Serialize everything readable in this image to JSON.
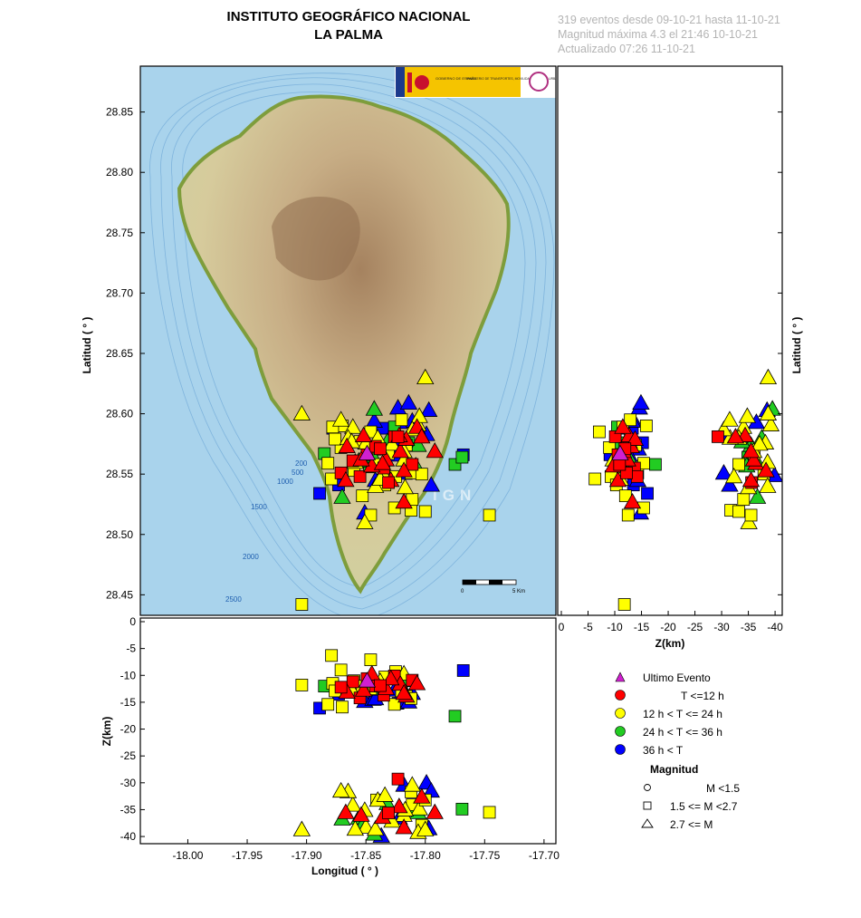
{
  "header": {
    "title_line1": "INSTITUTO GEOGRÁFICO NACIONAL",
    "title_line2": "LA PALMA",
    "info_line1": "319 eventos desde 09-10-21 hasta 11-10-21",
    "info_line2": "Magnitud máxima 4.3 el 21:46 10-10-21",
    "info_line3": "Actualizado   07:26  11-10-21"
  },
  "map": {
    "watermark": "IGN",
    "scale_bar": {
      "start": "0",
      "end": "5 Km"
    },
    "bathymetry_labels": [
      "200",
      "500",
      "1000",
      "1500",
      "2000",
      "2500"
    ],
    "logo_text": [
      "GOBIERNO DE ESPAÑA",
      "MINISTERIO DE TRANSPORTES, MOVILIDAD Y AGENDA URBANA"
    ]
  },
  "axes": {
    "latitude_label": "Latitud ( ° )",
    "longitude_label": "Longitud ( ° )",
    "depth_label": "Z(km)",
    "lat_ticks": [
      "28.85",
      "28.80",
      "28.75",
      "28.70",
      "28.65",
      "28.60",
      "28.55",
      "28.50",
      "28.45"
    ],
    "lon_ticks": [
      "-18.00",
      "-17.95",
      "-17.90",
      "-17.85",
      "-17.80",
      "-17.75",
      "-17.70"
    ],
    "depth_ticks_vertical": [
      "0",
      "-5",
      "-10",
      "-15",
      "-20",
      "-25",
      "-30",
      "-35",
      "-40"
    ],
    "depth_ticks_horizontal": [
      "0",
      "-5",
      "-10",
      "-15",
      "-20",
      "-25",
      "-30",
      "-35",
      "-40"
    ]
  },
  "legend": {
    "ultimo": "Ultimo Evento",
    "t1": "T <=12 h",
    "t2": "12 h  < T <= 24 h",
    "t3": "24 h  < T <= 36 h",
    "t4": "36 h <  T",
    "mag_title": "Magnitud",
    "m1": "M <1.5",
    "m2": "1.5 <= M <2.7",
    "m3": "2.7 <= M"
  },
  "colors": {
    "ultimo": "#d020d0",
    "red": "#ff0000",
    "yellow": "#ffff00",
    "green": "#22cc22",
    "blue": "#0000ff",
    "sea": "#a8d2ec",
    "land": "#d8cca0",
    "relief": "#9a7a55",
    "coast": "#8ba046"
  },
  "chart_data": {
    "type": "scatter",
    "xlim": [
      -18.04,
      -17.69
    ],
    "ylim": [
      28.433,
      28.888
    ],
    "zlim": [
      0,
      -41
    ],
    "events": [
      [
        -17.849,
        28.566,
        -10.6,
        1,
        2
      ],
      [
        -17.842,
        28.573,
        -12.0,
        1,
        2
      ],
      [
        -17.835,
        28.555,
        -13.7,
        1,
        2
      ],
      [
        -17.861,
        28.561,
        -11.2,
        1,
        2
      ],
      [
        -17.826,
        28.581,
        -10.1,
        1,
        2
      ],
      [
        -17.855,
        28.548,
        -14.2,
        1,
        2
      ],
      [
        -17.833,
        28.562,
        -12.4,
        1,
        3
      ],
      [
        -17.845,
        28.557,
        -9.7,
        1,
        3
      ],
      [
        -17.821,
        28.569,
        -11.6,
        1,
        3
      ],
      [
        -17.866,
        28.573,
        -13.1,
        1,
        3
      ],
      [
        -17.829,
        28.545,
        -10.6,
        1,
        3
      ],
      [
        -17.852,
        28.582,
        -12.7,
        1,
        3
      ],
      [
        -17.816,
        28.579,
        -13.8,
        1,
        3
      ],
      [
        -17.838,
        28.571,
        -11.9,
        1,
        2
      ],
      [
        -17.871,
        28.551,
        -12.2,
        1,
        2
      ],
      [
        -17.811,
        28.558,
        -10.9,
        1,
        2
      ],
      [
        -17.818,
        28.527,
        -13.3,
        1,
        3
      ],
      [
        -17.807,
        28.589,
        -11.5,
        1,
        3
      ],
      [
        -17.836,
        28.559,
        -36.4,
        1,
        3
      ],
      [
        -17.822,
        28.582,
        -34.4,
        1,
        3
      ],
      [
        -17.854,
        28.562,
        -36.0,
        1,
        3
      ],
      [
        -17.818,
        28.553,
        -38.3,
        1,
        3
      ],
      [
        -17.803,
        28.581,
        -32.6,
        1,
        3
      ],
      [
        -17.792,
        28.569,
        -35.5,
        1,
        3
      ],
      [
        -17.823,
        28.581,
        -29.3,
        1,
        2
      ],
      [
        -17.831,
        28.543,
        -35.6,
        1,
        2
      ],
      [
        -17.867,
        28.545,
        -35.5,
        1,
        3
      ],
      [
        -17.87,
        28.59,
        -15.9,
        2,
        2
      ],
      [
        -17.855,
        28.577,
        -13.0,
        2,
        2
      ],
      [
        -17.86,
        28.553,
        -11.0,
        2,
        2
      ],
      [
        -17.825,
        28.548,
        -9.3,
        2,
        2
      ],
      [
        -17.816,
        28.574,
        -13.9,
        2,
        2
      ],
      [
        -17.878,
        28.589,
        -11.5,
        2,
        2
      ],
      [
        -17.846,
        28.585,
        -7.1,
        2,
        2
      ],
      [
        -17.82,
        28.595,
        -12.9,
        2,
        2
      ],
      [
        -17.834,
        28.541,
        -10.3,
        2,
        2
      ],
      [
        -17.871,
        28.572,
        -9.0,
        2,
        2
      ],
      [
        -17.846,
        28.516,
        -12.5,
        2,
        2
      ],
      [
        -17.812,
        28.551,
        -14.3,
        2,
        2
      ],
      [
        -17.882,
        28.559,
        -15.4,
        2,
        2
      ],
      [
        -17.879,
        28.546,
        -6.3,
        2,
        2
      ],
      [
        -17.853,
        28.532,
        -12.0,
        2,
        2
      ],
      [
        -17.876,
        28.579,
        -12.9,
        2,
        2
      ],
      [
        -17.826,
        28.522,
        -15.4,
        2,
        2
      ],
      [
        -17.812,
        28.52,
        -31.7,
        2,
        2
      ],
      [
        -17.811,
        28.529,
        -34.1,
        2,
        2
      ],
      [
        -17.831,
        28.567,
        -36.1,
        2,
        2
      ],
      [
        -17.803,
        28.55,
        -37.9,
        2,
        2
      ],
      [
        -17.841,
        28.558,
        -33.2,
        2,
        2
      ],
      [
        -17.861,
        28.589,
        -34.1,
        2,
        3
      ],
      [
        -17.85,
        28.576,
        -38.2,
        2,
        3
      ],
      [
        -17.84,
        28.58,
        -33.2,
        2,
        3
      ],
      [
        -17.834,
        28.548,
        -32.3,
        2,
        3
      ],
      [
        -17.818,
        28.569,
        -36.0,
        2,
        3
      ],
      [
        -17.806,
        28.591,
        -39.2,
        2,
        3
      ],
      [
        -17.851,
        28.51,
        -35.1,
        2,
        3
      ],
      [
        -17.865,
        28.58,
        -31.6,
        2,
        3
      ],
      [
        -17.859,
        28.56,
        -38.6,
        2,
        3
      ],
      [
        -17.8,
        28.63,
        -38.7,
        2,
        3
      ],
      [
        -17.805,
        28.598,
        -34.8,
        2,
        3
      ],
      [
        -17.842,
        28.54,
        -38.6,
        2,
        3
      ],
      [
        -17.811,
        28.587,
        -30.4,
        2,
        3
      ],
      [
        -17.828,
        28.575,
        -37.1,
        2,
        3
      ],
      [
        -17.817,
        28.539,
        -35.0,
        2,
        3
      ],
      [
        -17.871,
        28.595,
        -31.5,
        2,
        3
      ],
      [
        -17.904,
        28.6,
        -38.7,
        2,
        3
      ],
      [
        -17.746,
        28.516,
        -35.5,
        2,
        2
      ],
      [
        -17.904,
        28.442,
        -11.8,
        2,
        2
      ],
      [
        -17.8,
        28.519,
        -33.2,
        2,
        2
      ],
      [
        -17.862,
        28.577,
        -12.7,
        2,
        3
      ],
      [
        -17.818,
        28.562,
        -9.7,
        2,
        3
      ],
      [
        -17.838,
        28.546,
        -11.1,
        2,
        3
      ],
      [
        -17.847,
        28.556,
        -11.5,
        3,
        2
      ],
      [
        -17.885,
        28.567,
        -12.0,
        3,
        2
      ],
      [
        -17.826,
        28.589,
        -10.5,
        3,
        2
      ],
      [
        -17.775,
        28.558,
        -17.6,
        3,
        2
      ],
      [
        -17.769,
        28.564,
        -34.9,
        3,
        2
      ],
      [
        -17.814,
        28.576,
        -11.0,
        3,
        2
      ],
      [
        -17.856,
        28.561,
        -36.5,
        3,
        3
      ],
      [
        -17.843,
        28.604,
        -39.5,
        3,
        3
      ],
      [
        -17.806,
        28.574,
        -35.5,
        3,
        3
      ],
      [
        -17.87,
        28.531,
        -36.7,
        3,
        3
      ],
      [
        -17.832,
        28.577,
        -33.8,
        3,
        3
      ],
      [
        -17.844,
        28.565,
        -12.5,
        3,
        3
      ],
      [
        -17.808,
        28.557,
        -34.7,
        3,
        3
      ],
      [
        -17.852,
        28.58,
        -37.5,
        3,
        3
      ],
      [
        -17.878,
        28.588,
        -11.8,
        4,
        2
      ],
      [
        -17.873,
        28.541,
        -13.5,
        4,
        2
      ],
      [
        -17.889,
        28.534,
        -16.1,
        4,
        2
      ],
      [
        -17.768,
        28.566,
        -9.1,
        4,
        2
      ],
      [
        -17.836,
        28.588,
        -13.3,
        4,
        2
      ],
      [
        -17.823,
        28.576,
        -15.2,
        4,
        2
      ],
      [
        -17.843,
        28.594,
        -13.6,
        4,
        3
      ],
      [
        -17.851,
        28.518,
        -14.8,
        4,
        3
      ],
      [
        -17.811,
        28.594,
        -13.3,
        4,
        3
      ],
      [
        -17.823,
        28.605,
        -14.6,
        4,
        3
      ],
      [
        -17.799,
        28.583,
        -30.0,
        4,
        3
      ],
      [
        -17.795,
        28.541,
        -31.5,
        4,
        3
      ],
      [
        -17.844,
        28.571,
        -14.4,
        4,
        3
      ],
      [
        -17.814,
        28.609,
        -14.9,
        4,
        3
      ],
      [
        -17.826,
        28.566,
        -12.7,
        4,
        3
      ],
      [
        -17.797,
        28.603,
        -38.5,
        4,
        3
      ],
      [
        -17.837,
        28.549,
        -39.9,
        4,
        3
      ],
      [
        -17.822,
        28.593,
        -36.5,
        4,
        3
      ],
      [
        -17.842,
        28.545,
        -14.3,
        4,
        3
      ],
      [
        -17.818,
        28.551,
        -30.4,
        4,
        3
      ],
      [
        -17.849,
        28.567,
        -11.0,
        0,
        3
      ]
    ]
  }
}
